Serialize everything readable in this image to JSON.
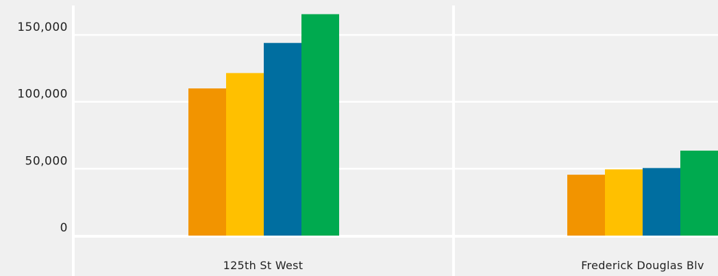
{
  "chart_data": {
    "type": "bar",
    "categories": [
      "125th St West",
      "Frederick Douglas Blv"
    ],
    "series": [
      {
        "color": "#f29400",
        "values": [
          110000,
          45500
        ]
      },
      {
        "color": "#ffc000",
        "values": [
          121500,
          49500
        ]
      },
      {
        "color": "#006ea0",
        "values": [
          144000,
          50500
        ]
      },
      {
        "color": "#00aa4f",
        "values": [
          165500,
          63500
        ]
      }
    ],
    "yticks": [
      {
        "value": 0,
        "label": "0"
      },
      {
        "value": 50000,
        "label": "50,000"
      },
      {
        "value": 100000,
        "label": "100,000"
      },
      {
        "value": 150000,
        "label": "150,000"
      }
    ],
    "ylim": [
      0,
      172000
    ],
    "grid": true,
    "legend": "none",
    "colors": {
      "background": "#f0f0f0",
      "grid": "#ffffff",
      "text": "#222222"
    }
  }
}
